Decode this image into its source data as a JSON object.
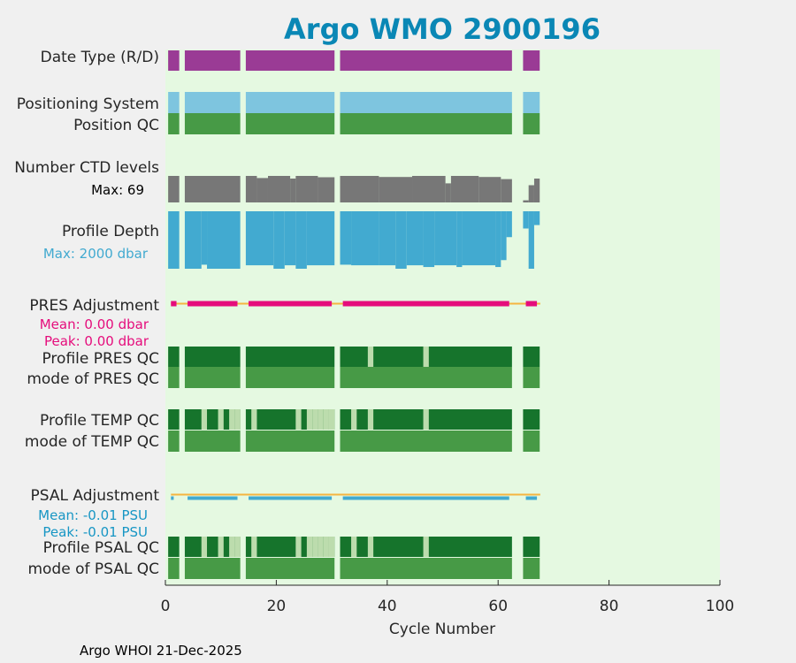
{
  "chart_data": {
    "type": "timeline",
    "title": "Argo WMO 2900196",
    "xlabel": "Cycle Number",
    "xlim": [
      0,
      100
    ],
    "xticks": [
      "0",
      "20",
      "40",
      "60",
      "80",
      "100"
    ],
    "footer": "Argo WHOI 21-Dec-2025",
    "row_labels": {
      "date_type": "Date Type (R/D)",
      "positioning_system": "Positioning System",
      "position_qc": "Position QC",
      "number_ctd_levels": "Number CTD levels",
      "profile_depth": "Profile Depth",
      "pres_adjustment": "PRES Adjustment",
      "profile_pres_qc": "Profile PRES QC",
      "mode_pres_qc": "mode of PRES QC",
      "profile_temp_qc": "Profile TEMP QC",
      "mode_temp_qc": "mode of TEMP QC",
      "psal_adjustment": "PSAL Adjustment",
      "profile_psal_qc": "Profile PSAL QC",
      "mode_psal_qc": "mode of PSAL QC"
    },
    "annotations": {
      "ctd_max": "Max: 69",
      "depth_max": "Max: 2000 dbar",
      "pres_mean": "Mean: 0.00 dbar",
      "pres_peak": "Peak: 0.00 dbar",
      "psal_mean": "Mean: -0.01 PSU",
      "psal_peak": "Peak: -0.01 PSU"
    },
    "data_segments": [
      [
        0.5,
        2.5
      ],
      [
        3.5,
        13.5
      ],
      [
        14.5,
        30.5
      ],
      [
        31.5,
        62.5
      ],
      [
        64.5,
        67.5
      ]
    ],
    "ctd_levels_max": 69,
    "ctd_level_fractions": [
      [
        0.5,
        2.5,
        1.0
      ],
      [
        3.5,
        13.5,
        1.0
      ],
      [
        14.5,
        16.5,
        1.0
      ],
      [
        16.5,
        18.5,
        0.92
      ],
      [
        18.5,
        22.5,
        1.0
      ],
      [
        22.5,
        23.5,
        0.9
      ],
      [
        23.5,
        27.5,
        1.0
      ],
      [
        27.5,
        30.5,
        0.95
      ],
      [
        31.5,
        38.5,
        1.0
      ],
      [
        38.5,
        44.5,
        0.96
      ],
      [
        44.5,
        50.5,
        1.0
      ],
      [
        50.5,
        51.5,
        0.72
      ],
      [
        51.5,
        56.5,
        1.0
      ],
      [
        56.5,
        60.5,
        0.96
      ],
      [
        60.5,
        62.5,
        0.88
      ],
      [
        64.5,
        65.5,
        0.08
      ],
      [
        65.5,
        66.5,
        0.65
      ],
      [
        66.5,
        67.5,
        0.9
      ]
    ],
    "profile_depth_max_dbar": 2000,
    "depth_fractions": [
      [
        0.5,
        2.5,
        1.0
      ],
      [
        3.5,
        6.5,
        1.0
      ],
      [
        6.5,
        7.5,
        0.93
      ],
      [
        7.5,
        13.5,
        1.0
      ],
      [
        14.5,
        19.5,
        0.94
      ],
      [
        19.5,
        21.5,
        1.0
      ],
      [
        21.5,
        23.5,
        0.94
      ],
      [
        23.5,
        25.5,
        1.0
      ],
      [
        25.5,
        30.5,
        0.94
      ],
      [
        31.5,
        33.5,
        0.93
      ],
      [
        33.5,
        38.5,
        0.94
      ],
      [
        38.5,
        41.5,
        0.94
      ],
      [
        41.5,
        43.5,
        1.0
      ],
      [
        43.5,
        46.5,
        0.94
      ],
      [
        46.5,
        48.5,
        0.97
      ],
      [
        48.5,
        52.5,
        0.94
      ],
      [
        52.5,
        53.5,
        0.97
      ],
      [
        53.5,
        59.5,
        0.94
      ],
      [
        59.5,
        60.5,
        0.97
      ],
      [
        60.5,
        61.5,
        0.85
      ],
      [
        61.5,
        62.5,
        0.45
      ],
      [
        64.5,
        65.5,
        0.3
      ],
      [
        65.5,
        66.5,
        1.0
      ],
      [
        66.5,
        67.5,
        0.24
      ]
    ],
    "pres_adjustment_segments": [
      [
        1,
        2
      ],
      [
        4,
        13
      ],
      [
        15,
        30
      ],
      [
        32,
        62
      ],
      [
        65,
        67
      ]
    ],
    "psal_adjustment_segments": [
      [
        1,
        1.5
      ],
      [
        4,
        13
      ],
      [
        15,
        30
      ],
      [
        32,
        62
      ],
      [
        65,
        67
      ]
    ],
    "profile_pres_qc_light_cycles": [
      37,
      47
    ],
    "profile_temp_qc_light_cycles": [
      7,
      10,
      12,
      13,
      16,
      24,
      26,
      27,
      28,
      29,
      30,
      34,
      37,
      47
    ],
    "profile_psal_qc_light_cycles": [
      7,
      10,
      12,
      13,
      16,
      24,
      26,
      27,
      28,
      29,
      30,
      34,
      37,
      47
    ],
    "colors": {
      "title": "#0a87b5",
      "plot_bg": "#e5f9e1",
      "figure_bg": "#f0f0f0",
      "date_type": "#9a3b95",
      "positioning_system": "#7ec5df",
      "mode_qc": "#479a46",
      "profile_qc_dark": "#16742c",
      "profile_qc_light": "#bcdcad",
      "ctd_levels": "#777777",
      "profile_depth": "#42aad0",
      "pres_adjustment": "#e50d7c",
      "psal_adjustment": "#42aad0",
      "adjustment_line": "#f5b540",
      "pres_annotation": "#e50d7c",
      "psal_annotation": "#1796c4"
    }
  }
}
